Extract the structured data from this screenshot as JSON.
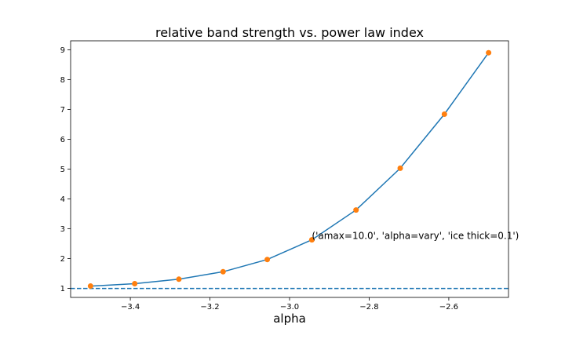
{
  "chart_data": {
    "type": "line",
    "title": "relative band strength vs. power law index",
    "xlabel": "alpha",
    "ylabel": "",
    "xlim": [
      -3.55,
      -2.45
    ],
    "ylim": [
      0.7,
      9.3
    ],
    "x_ticks": [
      -3.4,
      -3.2,
      -3.0,
      -2.8,
      -2.6
    ],
    "x_tick_labels": [
      "−3.4",
      "−3.2",
      "−3.0",
      "−2.8",
      "−2.6"
    ],
    "y_ticks": [
      1,
      2,
      3,
      4,
      5,
      6,
      7,
      8,
      9
    ],
    "y_tick_labels": [
      "1",
      "2",
      "3",
      "4",
      "5",
      "6",
      "7",
      "8",
      "9"
    ],
    "grid": false,
    "series": [
      {
        "line_color": "#1f77b4",
        "marker_color": "#ff7f0e",
        "x": [
          -3.5,
          -3.389,
          -3.278,
          -3.167,
          -3.056,
          -2.944,
          -2.833,
          -2.722,
          -2.611,
          -2.5
        ],
        "y": [
          1.08,
          1.16,
          1.31,
          1.56,
          1.97,
          2.63,
          3.63,
          5.03,
          6.84,
          8.9
        ]
      }
    ],
    "reference_line": {
      "y": 1,
      "style": "dashed",
      "color": "#1f77b4"
    },
    "annotation": {
      "text": "('amax=10.0', 'alpha=vary', 'ice thick=0.1')",
      "x": -2.944,
      "y": 2.63
    }
  }
}
